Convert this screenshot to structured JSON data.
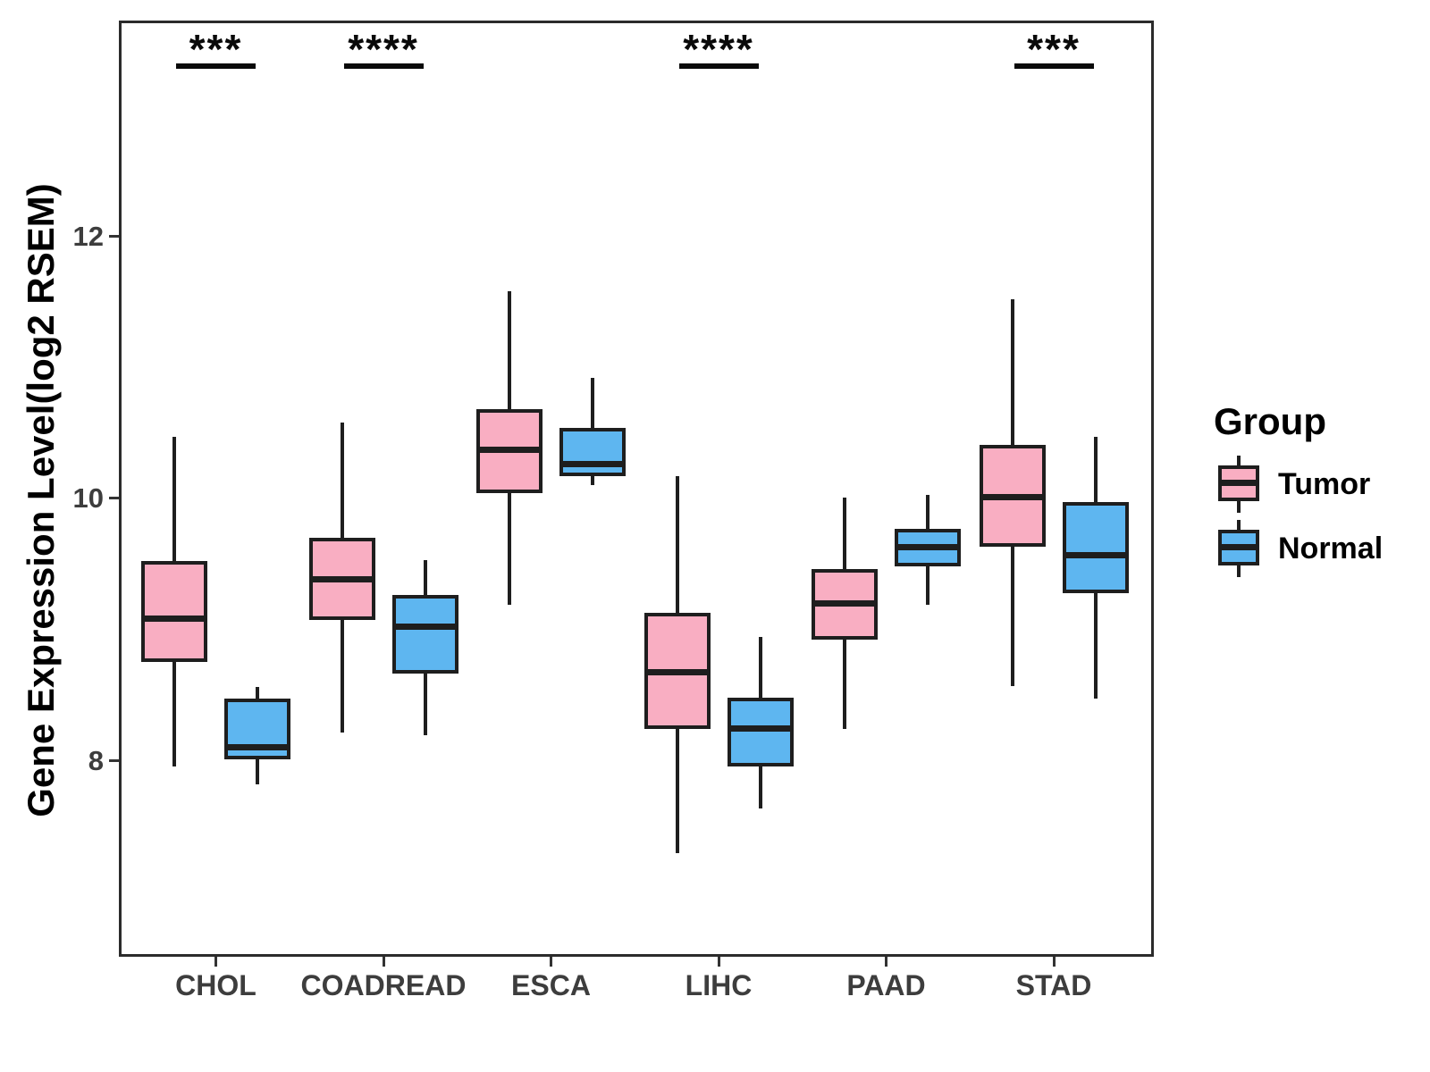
{
  "y_axis": {
    "label": "Gene Expression Level(log2 RSEM)",
    "ticks": [
      "8",
      "10",
      "12"
    ]
  },
  "x_axis": {
    "categories": [
      "CHOL",
      "COADREAD",
      "ESCA",
      "LIHC",
      "PAAD",
      "STAD"
    ]
  },
  "legend": {
    "title": "Group",
    "entries": [
      {
        "label": "Tumor",
        "color": "#F9AEC2"
      },
      {
        "label": "Normal",
        "color": "#5EB6F0"
      }
    ]
  },
  "chart_data": {
    "type": "boxplot",
    "title": "",
    "xlabel": "",
    "ylabel": "Gene Expression Level(log2 RSEM)",
    "categories": [
      "CHOL",
      "COADREAD",
      "ESCA",
      "LIHC",
      "PAAD",
      "STAD"
    ],
    "groups": [
      "Tumor",
      "Normal"
    ],
    "ylim": [
      6.5,
      13.65
    ],
    "yticks": [
      8,
      10,
      12
    ],
    "legend_position": "right",
    "grid": false,
    "series": [
      {
        "name": "Tumor",
        "color": "#F9AEC2",
        "boxes": [
          {
            "category": "CHOL",
            "whisker_low": 7.95,
            "q1": 8.75,
            "median": 9.08,
            "q3": 9.52,
            "whisker_high": 10.47
          },
          {
            "category": "COADREAD",
            "whisker_low": 8.21,
            "q1": 9.07,
            "median": 9.38,
            "q3": 9.7,
            "whisker_high": 10.58
          },
          {
            "category": "ESCA",
            "whisker_low": 9.19,
            "q1": 10.04,
            "median": 10.37,
            "q3": 10.68,
            "whisker_high": 11.58
          },
          {
            "category": "LIHC",
            "whisker_low": 7.29,
            "q1": 8.24,
            "median": 8.67,
            "q3": 9.13,
            "whisker_high": 10.17
          },
          {
            "category": "PAAD",
            "whisker_low": 8.24,
            "q1": 8.92,
            "median": 9.2,
            "q3": 9.46,
            "whisker_high": 10.01
          },
          {
            "category": "STAD",
            "whisker_low": 8.57,
            "q1": 9.63,
            "median": 10.01,
            "q3": 10.41,
            "whisker_high": 11.52
          }
        ]
      },
      {
        "name": "Normal",
        "color": "#5EB6F0",
        "boxes": [
          {
            "category": "CHOL",
            "whisker_low": 7.82,
            "q1": 8.01,
            "median": 8.1,
            "q3": 8.47,
            "whisker_high": 8.56
          },
          {
            "category": "COADREAD",
            "whisker_low": 8.19,
            "q1": 8.66,
            "median": 9.02,
            "q3": 9.26,
            "whisker_high": 9.53
          },
          {
            "category": "ESCA",
            "whisker_low": 10.1,
            "q1": 10.17,
            "median": 10.26,
            "q3": 10.54,
            "whisker_high": 10.92
          },
          {
            "category": "LIHC",
            "whisker_low": 7.63,
            "q1": 7.95,
            "median": 8.24,
            "q3": 8.48,
            "whisker_high": 8.94
          },
          {
            "category": "PAAD",
            "whisker_low": 9.19,
            "q1": 9.48,
            "median": 9.63,
            "q3": 9.77,
            "whisker_high": 10.03
          },
          {
            "category": "STAD",
            "whisker_low": 8.47,
            "q1": 9.28,
            "median": 9.57,
            "q3": 9.97,
            "whisker_high": 10.47
          }
        ]
      }
    ],
    "significance": [
      {
        "category": "CHOL",
        "label": "***"
      },
      {
        "category": "COADREAD",
        "label": "****"
      },
      {
        "category": "LIHC",
        "label": "****"
      },
      {
        "category": "STAD",
        "label": "***"
      }
    ]
  }
}
